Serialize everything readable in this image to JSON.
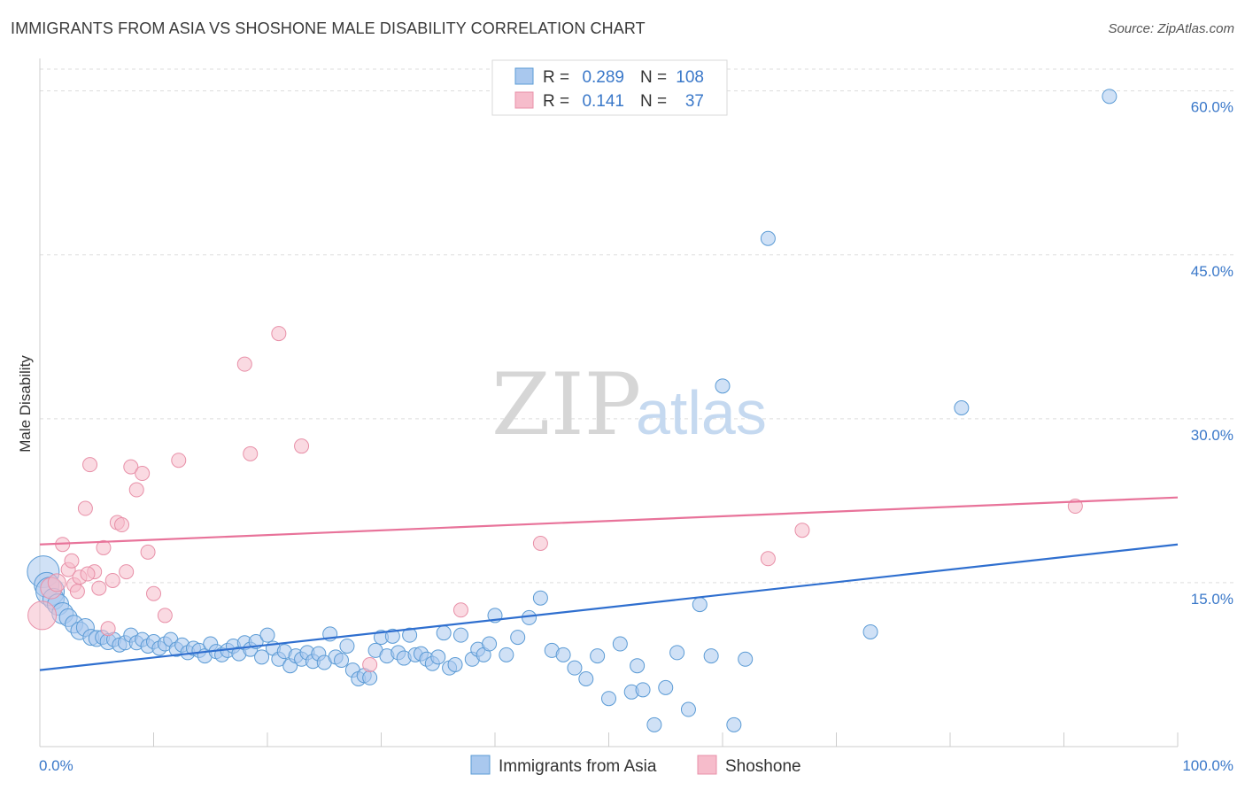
{
  "title": "IMMIGRANTS FROM ASIA VS SHOSHONE MALE DISABILITY CORRELATION CHART",
  "source": "Source: ZipAtlas.com",
  "watermark": {
    "zip": "ZIP",
    "atlas": "atlas"
  },
  "colors": {
    "blue": "#5b9bd5",
    "blue_fill": "#a9c8ee",
    "blue_line": "#2f6fcf",
    "pink": "#e890a8",
    "pink_fill": "#f6bccb",
    "pink_line": "#e8739a",
    "grid": "#dddddd",
    "tick_text": "#3a78c9"
  },
  "legend": {
    "r_label": "R =",
    "n_label": "N =",
    "rows": [
      {
        "r": "0.289",
        "n": "108",
        "color": "blue"
      },
      {
        "r": "0.141",
        "n": "37",
        "color": "pink"
      }
    ]
  },
  "chart_data": {
    "type": "scatter",
    "x_axis": {
      "min": 0,
      "max": 100,
      "ticks": [
        "0.0%",
        "100.0%"
      ]
    },
    "y_axis": {
      "label": "Male Disability",
      "min": 0,
      "max": 62,
      "ticks": [
        "15.0%",
        "30.0%",
        "45.0%",
        "60.0%"
      ],
      "tick_values": [
        15,
        30,
        45,
        60
      ]
    },
    "grid": true,
    "series": [
      {
        "name": "Immigrants from Asia",
        "color": "blue",
        "trend": {
          "x0": 0,
          "y0": 7.0,
          "x1": 100,
          "y1": 18.5
        },
        "points": [
          [
            0.3,
            16.0,
            18
          ],
          [
            0.6,
            14.8,
            14
          ],
          [
            0.9,
            14.2,
            16
          ],
          [
            1.2,
            13.5,
            12
          ],
          [
            1.6,
            13.0,
            12
          ],
          [
            2.0,
            12.2,
            12
          ],
          [
            2.5,
            11.8,
            10
          ],
          [
            3.0,
            11.2,
            10
          ],
          [
            3.5,
            10.6,
            10
          ],
          [
            4.0,
            10.9,
            10
          ],
          [
            4.5,
            10.0,
            9
          ],
          [
            5.0,
            9.9,
            9
          ],
          [
            5.5,
            10.0,
            8
          ],
          [
            6.0,
            9.6,
            9
          ],
          [
            6.5,
            9.8,
            8
          ],
          [
            7.0,
            9.3,
            8
          ],
          [
            7.5,
            9.5,
            8
          ],
          [
            8.0,
            10.2,
            8
          ],
          [
            8.5,
            9.5,
            8
          ],
          [
            9.0,
            9.8,
            8
          ],
          [
            9.5,
            9.2,
            8
          ],
          [
            10.0,
            9.6,
            8
          ],
          [
            10.5,
            9.0,
            8
          ],
          [
            11.0,
            9.4,
            8
          ],
          [
            11.5,
            9.8,
            8
          ],
          [
            12.0,
            8.9,
            8
          ],
          [
            12.5,
            9.3,
            8
          ],
          [
            13.0,
            8.6,
            8
          ],
          [
            13.5,
            9.0,
            8
          ],
          [
            14.0,
            8.8,
            8
          ],
          [
            14.5,
            8.3,
            8
          ],
          [
            15.0,
            9.4,
            8
          ],
          [
            15.5,
            8.7,
            8
          ],
          [
            16.0,
            8.4,
            8
          ],
          [
            16.5,
            8.8,
            8
          ],
          [
            17.0,
            9.2,
            8
          ],
          [
            17.5,
            8.5,
            8
          ],
          [
            18.0,
            9.5,
            8
          ],
          [
            18.5,
            8.9,
            8
          ],
          [
            19.0,
            9.6,
            8
          ],
          [
            19.5,
            8.2,
            8
          ],
          [
            20.0,
            10.2,
            8
          ],
          [
            20.5,
            9.0,
            8
          ],
          [
            21.0,
            8.0,
            8
          ],
          [
            21.5,
            8.7,
            8
          ],
          [
            22.0,
            7.4,
            8
          ],
          [
            22.5,
            8.3,
            8
          ],
          [
            23.0,
            8.0,
            8
          ],
          [
            23.5,
            8.6,
            8
          ],
          [
            24.0,
            7.8,
            8
          ],
          [
            24.5,
            8.5,
            8
          ],
          [
            25.0,
            7.7,
            8
          ],
          [
            25.5,
            10.3,
            8
          ],
          [
            26.0,
            8.2,
            8
          ],
          [
            26.5,
            7.9,
            8
          ],
          [
            27.0,
            9.2,
            8
          ],
          [
            27.5,
            7.0,
            8
          ],
          [
            28.0,
            6.2,
            8
          ],
          [
            28.5,
            6.5,
            8
          ],
          [
            29.0,
            6.3,
            8
          ],
          [
            29.5,
            8.8,
            8
          ],
          [
            30.0,
            10.0,
            8
          ],
          [
            30.5,
            8.3,
            8
          ],
          [
            31.0,
            10.1,
            8
          ],
          [
            31.5,
            8.6,
            8
          ],
          [
            32.0,
            8.1,
            8
          ],
          [
            32.5,
            10.2,
            8
          ],
          [
            33.0,
            8.4,
            8
          ],
          [
            33.5,
            8.5,
            8
          ],
          [
            34.0,
            8.0,
            8
          ],
          [
            34.5,
            7.6,
            8
          ],
          [
            35.0,
            8.2,
            8
          ],
          [
            35.5,
            10.4,
            8
          ],
          [
            36.0,
            7.2,
            8
          ],
          [
            36.5,
            7.5,
            8
          ],
          [
            37.0,
            10.2,
            8
          ],
          [
            38.0,
            8.0,
            8
          ],
          [
            38.5,
            8.9,
            8
          ],
          [
            39.0,
            8.4,
            8
          ],
          [
            39.5,
            9.4,
            8
          ],
          [
            40.0,
            12.0,
            8
          ],
          [
            41.0,
            8.4,
            8
          ],
          [
            42.0,
            10.0,
            8
          ],
          [
            43.0,
            11.8,
            8
          ],
          [
            44.0,
            13.6,
            8
          ],
          [
            45.0,
            8.8,
            8
          ],
          [
            46.0,
            8.4,
            8
          ],
          [
            47.0,
            7.2,
            8
          ],
          [
            48.0,
            6.2,
            8
          ],
          [
            49.0,
            8.3,
            8
          ],
          [
            50.0,
            4.4,
            8
          ],
          [
            51.0,
            9.4,
            8
          ],
          [
            52.0,
            5.0,
            8
          ],
          [
            52.5,
            7.4,
            8
          ],
          [
            53.0,
            5.2,
            8
          ],
          [
            54.0,
            2.0,
            8
          ],
          [
            55.0,
            5.4,
            8
          ],
          [
            56.0,
            8.6,
            8
          ],
          [
            57.0,
            3.4,
            8
          ],
          [
            58.0,
            13.0,
            8
          ],
          [
            59.0,
            8.3,
            8
          ],
          [
            60.0,
            33.0,
            8
          ],
          [
            61.0,
            2.0,
            8
          ],
          [
            62.0,
            8.0,
            8
          ],
          [
            64.0,
            46.5,
            8
          ],
          [
            73.0,
            10.5,
            8
          ],
          [
            81.0,
            31.0,
            8
          ],
          [
            94.0,
            59.5,
            8
          ]
        ]
      },
      {
        "name": "Shoshone",
        "color": "pink",
        "trend": {
          "x0": 0,
          "y0": 18.5,
          "x1": 100,
          "y1": 22.8
        },
        "points": [
          [
            0.2,
            12.0,
            16
          ],
          [
            1.0,
            14.5,
            12
          ],
          [
            1.5,
            15.0,
            10
          ],
          [
            2.0,
            18.5,
            8
          ],
          [
            2.5,
            16.2,
            8
          ],
          [
            3.0,
            14.8,
            8
          ],
          [
            3.5,
            15.5,
            8
          ],
          [
            4.0,
            21.8,
            8
          ],
          [
            4.4,
            25.8,
            8
          ],
          [
            4.8,
            16.0,
            8
          ],
          [
            5.2,
            14.5,
            8
          ],
          [
            5.6,
            18.2,
            8
          ],
          [
            6.0,
            10.8,
            8
          ],
          [
            6.4,
            15.2,
            8
          ],
          [
            6.8,
            20.5,
            8
          ],
          [
            7.2,
            20.3,
            8
          ],
          [
            7.6,
            16.0,
            8
          ],
          [
            8.0,
            25.6,
            8
          ],
          [
            8.5,
            23.5,
            8
          ],
          [
            9.0,
            25.0,
            8
          ],
          [
            9.5,
            17.8,
            8
          ],
          [
            10.0,
            14.0,
            8
          ],
          [
            11.0,
            12.0,
            8
          ],
          [
            12.2,
            26.2,
            8
          ],
          [
            18.0,
            35.0,
            8
          ],
          [
            18.5,
            26.8,
            8
          ],
          [
            21.0,
            37.8,
            8
          ],
          [
            23.0,
            27.5,
            8
          ],
          [
            29.0,
            7.5,
            8
          ],
          [
            37.0,
            12.5,
            8
          ],
          [
            44.0,
            18.6,
            8
          ],
          [
            64.0,
            17.2,
            8
          ],
          [
            67.0,
            19.8,
            8
          ],
          [
            91.0,
            22.0,
            8
          ],
          [
            2.8,
            17.0,
            8
          ],
          [
            3.3,
            14.2,
            8
          ],
          [
            4.2,
            15.8,
            8
          ]
        ]
      }
    ],
    "bottom_legend": [
      "Immigrants from Asia",
      "Shoshone"
    ]
  }
}
